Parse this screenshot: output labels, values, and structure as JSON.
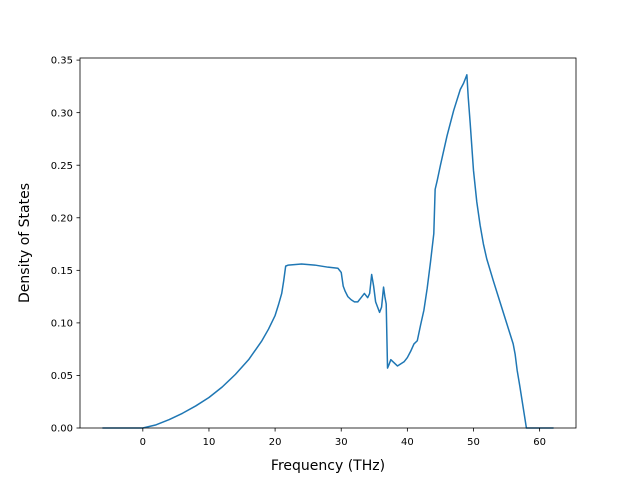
{
  "chart_data": {
    "type": "line",
    "title": "",
    "xlabel": "Frequency (THz)",
    "ylabel": "Density of States",
    "xlim": [
      -9.5,
      65.5
    ],
    "ylim": [
      0.0,
      0.352
    ],
    "xticks": [
      0,
      10,
      20,
      30,
      40,
      50,
      60
    ],
    "xtick_labels": [
      "0",
      "10",
      "20",
      "30",
      "40",
      "50",
      "60"
    ],
    "yticks": [
      0.0,
      0.05,
      0.1,
      0.15,
      0.2,
      0.25,
      0.3,
      0.35
    ],
    "ytick_labels": [
      "0.00",
      "0.05",
      "0.10",
      "0.15",
      "0.20",
      "0.25",
      "0.30",
      "0.35"
    ],
    "grid": false,
    "legend": "none",
    "series": [
      {
        "color": "#1f77b4",
        "x": [
          -6,
          -3,
          0,
          2,
          4,
          6,
          8,
          10,
          12,
          14,
          16,
          18,
          19,
          20,
          20.5,
          21,
          21.3,
          21.6,
          22,
          24,
          26,
          28,
          29.5,
          30,
          30.3,
          30.6,
          31,
          31.5,
          32,
          32.5,
          33,
          33.5,
          34,
          34.3,
          34.6,
          34.9,
          35.2,
          35.5,
          35.8,
          36.1,
          36.4,
          36.6,
          36.8,
          37,
          37.2,
          37.5,
          38,
          38.5,
          39,
          39.5,
          40,
          40.5,
          41,
          41.5,
          42,
          42.5,
          43,
          43.5,
          44,
          44.2,
          44.5,
          45,
          46,
          47,
          48,
          48.5,
          49,
          49.2,
          49.5,
          50,
          50.5,
          51,
          51.5,
          52,
          53,
          54,
          55,
          55.5,
          56,
          56.3,
          56.6,
          57,
          58,
          60,
          62
        ],
        "y": [
          0.0,
          0.0,
          0.0,
          0.003,
          0.008,
          0.014,
          0.021,
          0.029,
          0.039,
          0.051,
          0.065,
          0.083,
          0.094,
          0.107,
          0.117,
          0.128,
          0.14,
          0.154,
          0.155,
          0.156,
          0.155,
          0.153,
          0.152,
          0.148,
          0.135,
          0.13,
          0.125,
          0.122,
          0.12,
          0.12,
          0.124,
          0.128,
          0.124,
          0.128,
          0.146,
          0.135,
          0.12,
          0.115,
          0.11,
          0.115,
          0.134,
          0.125,
          0.118,
          0.057,
          0.06,
          0.065,
          0.062,
          0.059,
          0.061,
          0.063,
          0.067,
          0.073,
          0.08,
          0.083,
          0.098,
          0.112,
          0.133,
          0.158,
          0.185,
          0.227,
          0.235,
          0.25,
          0.278,
          0.302,
          0.322,
          0.328,
          0.336,
          0.315,
          0.29,
          0.245,
          0.215,
          0.193,
          0.175,
          0.161,
          0.14,
          0.12,
          0.1,
          0.09,
          0.08,
          0.07,
          0.055,
          0.04,
          0.0,
          0.0,
          0.0
        ]
      }
    ]
  }
}
